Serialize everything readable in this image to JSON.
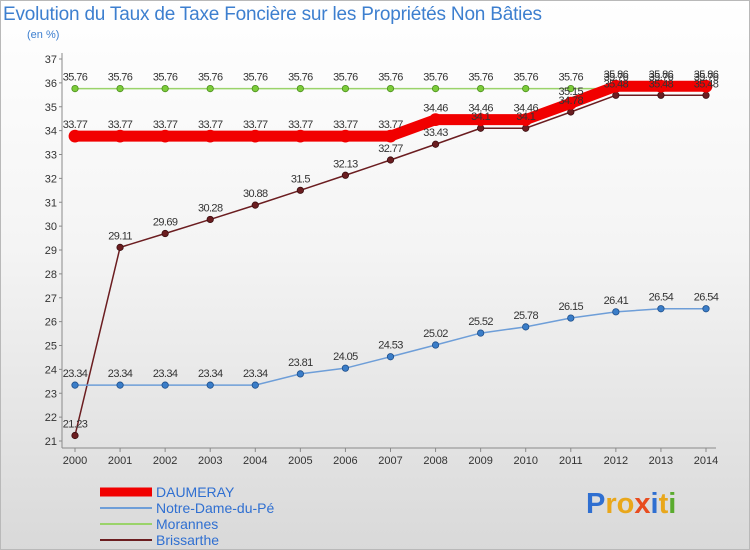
{
  "chart_data": {
    "type": "line",
    "title": "Evolution du Taux de Taxe Foncière sur les Propriétés Non Bâties",
    "subtitle": "(en %)",
    "x": [
      "2000",
      "2001",
      "2002",
      "2003",
      "2004",
      "2005",
      "2006",
      "2007",
      "2008",
      "2009",
      "2010",
      "2011",
      "2012",
      "2013",
      "2014"
    ],
    "ylim": [
      21,
      37
    ],
    "yticks": [
      21,
      22,
      23,
      24,
      25,
      26,
      27,
      28,
      29,
      30,
      31,
      32,
      33,
      34,
      35,
      36,
      37
    ],
    "grid": false,
    "legend_position": "bottom-left",
    "series": [
      {
        "name": "Brissarthe",
        "color": "#6b1d20",
        "values": [
          21.23,
          29.11,
          29.69,
          30.28,
          30.88,
          31.5,
          32.13,
          32.77,
          33.43,
          34.1,
          34.1,
          34.78,
          35.48,
          35.48,
          35.48
        ],
        "labels": [
          "21.23",
          "29.11",
          "29.69",
          "30.28",
          "30.88",
          "31.5",
          "32.13",
          "32.77",
          "33.43",
          "34.1",
          "34.1",
          "34.78",
          "35.48",
          "35.48",
          "35.48"
        ]
      },
      {
        "name": "Morannes",
        "color": "#9ad36a",
        "values": [
          35.76,
          35.76,
          35.76,
          35.76,
          35.76,
          35.76,
          35.76,
          35.76,
          35.76,
          35.76,
          35.76,
          35.76,
          35.76,
          35.76,
          35.76
        ],
        "labels": [
          "35.76",
          "35.76",
          "35.76",
          "35.76",
          "35.76",
          "35.76",
          "35.76",
          "35.76",
          "35.76",
          "35.76",
          "35.76",
          "35.76",
          "35.76",
          "35.76",
          "35.76"
        ]
      },
      {
        "name": "DAUMERAY",
        "color": "#f10000",
        "values": [
          33.77,
          33.77,
          33.77,
          33.77,
          33.77,
          33.77,
          33.77,
          33.77,
          34.46,
          34.46,
          34.46,
          35.15,
          35.86,
          35.86,
          35.86
        ],
        "labels": [
          "33.77",
          "33.77",
          "33.77",
          "33.77",
          "33.77",
          "33.77",
          "33.77",
          "33.77",
          "34.46",
          "34.46",
          "34.46",
          "35.15",
          "35.86",
          "35.86",
          "35.86"
        ]
      },
      {
        "name": "Notre-Dame-du-Pé",
        "color": "#6e9ed8",
        "values": [
          23.34,
          23.34,
          23.34,
          23.34,
          23.34,
          23.81,
          24.05,
          24.53,
          25.02,
          25.52,
          25.78,
          26.15,
          26.41,
          26.54,
          26.54
        ],
        "labels": [
          "23.34",
          "23.34",
          "23.34",
          "23.34",
          "23.34",
          "23.81",
          "24.05",
          "24.53",
          "25.02",
          "25.52",
          "25.78",
          "26.15",
          "26.41",
          "26.54",
          "26.54"
        ]
      }
    ]
  },
  "legend": {
    "items": [
      {
        "name": "DAUMERAY",
        "color": "#f10000"
      },
      {
        "name": "Notre-Dame-du-Pé",
        "color": "#6e9ed8"
      },
      {
        "name": "Morannes",
        "color": "#9ad36a"
      },
      {
        "name": "Brissarthe",
        "color": "#6b1d20"
      }
    ]
  },
  "logo": {
    "letters": [
      "P",
      "r",
      "o",
      "x",
      "i",
      "t",
      "i"
    ],
    "colors": [
      "#2f6fd1",
      "#e9a71b",
      "#e9a71b",
      "#e84c1f",
      "#2f6fd1",
      "#e9a71b",
      "#5aab2e"
    ]
  }
}
